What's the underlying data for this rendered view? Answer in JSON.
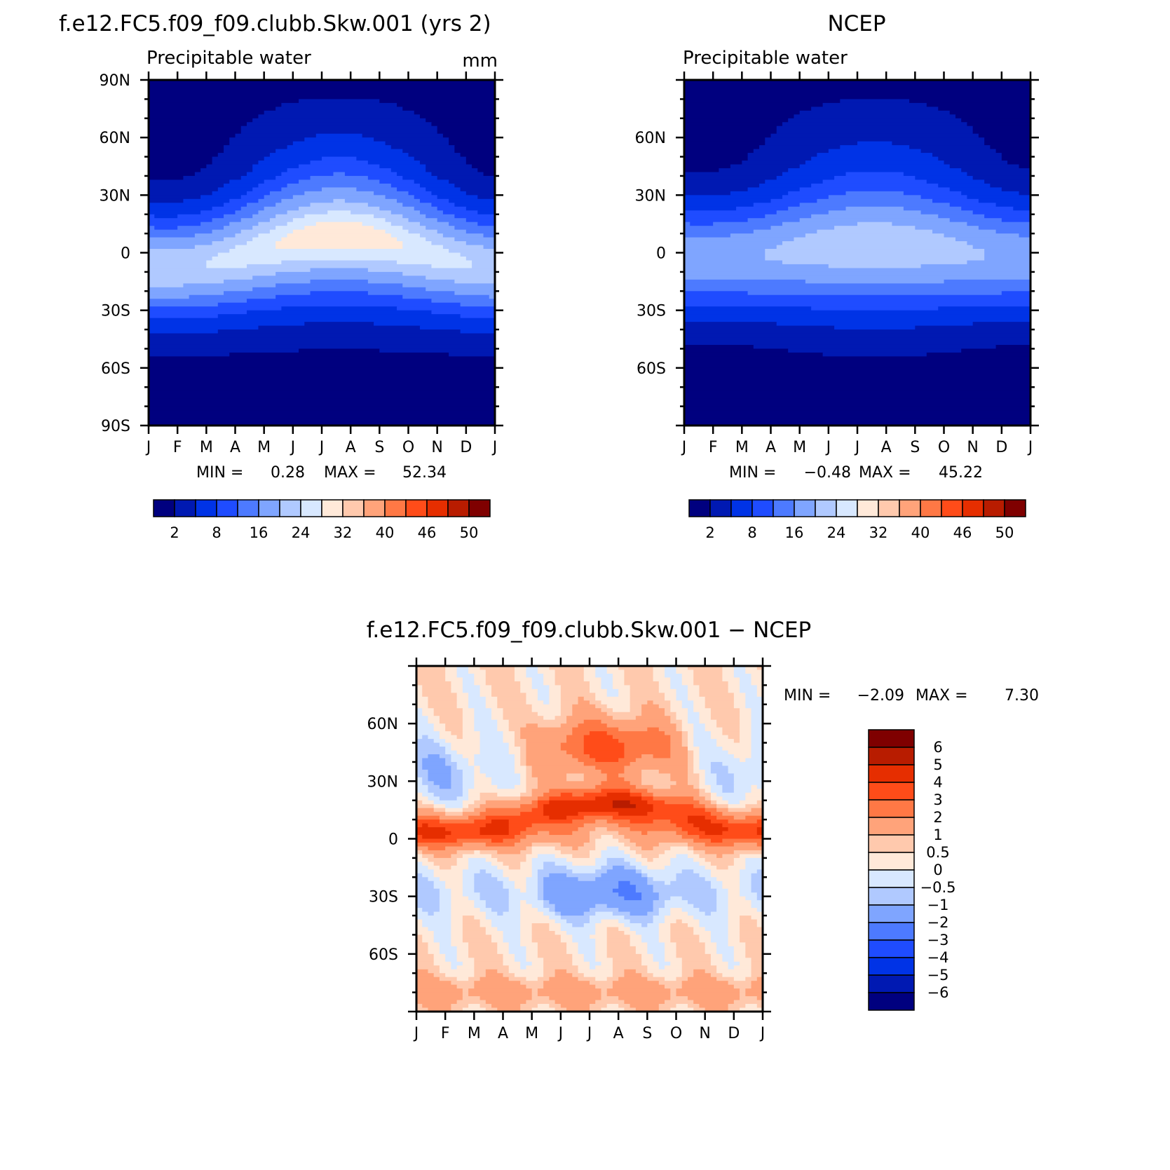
{
  "colors": {
    "abs_scale": [
      "#00007f",
      "#0019b2",
      "#0033e6",
      "#1f4cff",
      "#4d7aff",
      "#7fa5ff",
      "#b0c9ff",
      "#d8e8ff",
      "#ffe9d9",
      "#ffc9ad",
      "#ffa37a",
      "#ff7845",
      "#ff4c19",
      "#e62e00",
      "#b81c00",
      "#7f0000"
    ],
    "diff_scale": [
      "#00007f",
      "#0019b2",
      "#0033e6",
      "#1f4cff",
      "#4d7aff",
      "#7fa5ff",
      "#b0c9ff",
      "#d8e8ff",
      "#ffe9d9",
      "#ffc9ad",
      "#ffa37a",
      "#ff7845",
      "#ff4c19",
      "#e62e00",
      "#b81c00",
      "#7f0000"
    ]
  },
  "chart_data": [
    {
      "id": "model",
      "type": "heatmap",
      "title": "f.e12.FC5.f09_f09.clubb.Skw.001 (yrs 2)",
      "subtitle": "Precipitable water",
      "units": "mm",
      "x_tick_labels": [
        "J",
        "F",
        "M",
        "A",
        "M",
        "J",
        "J",
        "A",
        "S",
        "O",
        "N",
        "D",
        "J"
      ],
      "y_tick_labels": [
        "90N",
        "60N",
        "30N",
        "0",
        "30S",
        "60S",
        "90S"
      ],
      "y_tick_values": [
        90,
        60,
        30,
        0,
        -30,
        -60,
        -90
      ],
      "ylim": [
        -90,
        90
      ],
      "min_max_prefix": "MIN =",
      "min": "0.28",
      "max_prefix": "MAX =",
      "max": "52.34",
      "min_value": 0.28,
      "max_value": 52.34,
      "itcz_peak_lat": 8,
      "levels": [
        2,
        8,
        16,
        24,
        32,
        40,
        46,
        50
      ],
      "colorbar_labels": [
        "2",
        "8",
        "16",
        "24",
        "32",
        "40",
        "46",
        "50"
      ]
    },
    {
      "id": "obs",
      "type": "heatmap",
      "title": "NCEP",
      "subtitle": "Precipitable water",
      "x_tick_labels": [
        "J",
        "F",
        "M",
        "A",
        "M",
        "J",
        "J",
        "A",
        "S",
        "O",
        "N",
        "D",
        "J"
      ],
      "y_tick_labels": [
        "60N",
        "30N",
        "0",
        "30S",
        "60S"
      ],
      "y_tick_values": [
        60,
        30,
        0,
        -30,
        -60
      ],
      "ylim": [
        -90,
        90
      ],
      "min_max_prefix": "MIN =",
      "min": "−0.48",
      "max_prefix": "MAX =",
      "max": "45.22",
      "min_value": -0.48,
      "max_value": 45.22,
      "itcz_peak_lat": 3,
      "levels": [
        2,
        8,
        16,
        24,
        32,
        40,
        46,
        50
      ],
      "colorbar_labels": [
        "2",
        "8",
        "16",
        "24",
        "32",
        "40",
        "46",
        "50"
      ]
    },
    {
      "id": "diff",
      "type": "heatmap",
      "title": "f.e12.FC5.f09_f09.clubb.Skw.001 − NCEP",
      "x_tick_labels": [
        "J",
        "F",
        "M",
        "A",
        "M",
        "J",
        "J",
        "A",
        "S",
        "O",
        "N",
        "D",
        "J"
      ],
      "y_tick_labels": [
        "60N",
        "30N",
        "0",
        "30S",
        "60S"
      ],
      "y_tick_values": [
        60,
        30,
        0,
        -30,
        -60
      ],
      "ylim": [
        -90,
        90
      ],
      "min_max_prefix": "MIN =",
      "min": "−2.09",
      "max_prefix": "MAX =",
      "max": "7.30",
      "min_value": -2.09,
      "max_value": 7.3,
      "levels": [
        -6,
        -5,
        -4,
        -3,
        -2,
        -1,
        -0.5,
        0,
        0.5,
        1,
        2,
        3,
        4,
        5,
        6
      ],
      "colorbar_labels": [
        "6",
        "5",
        "4",
        "3",
        "2",
        "1",
        "0.5",
        "0",
        "−0.5",
        "−1",
        "−2",
        "−3",
        "−4",
        "−5",
        "−6"
      ]
    }
  ]
}
